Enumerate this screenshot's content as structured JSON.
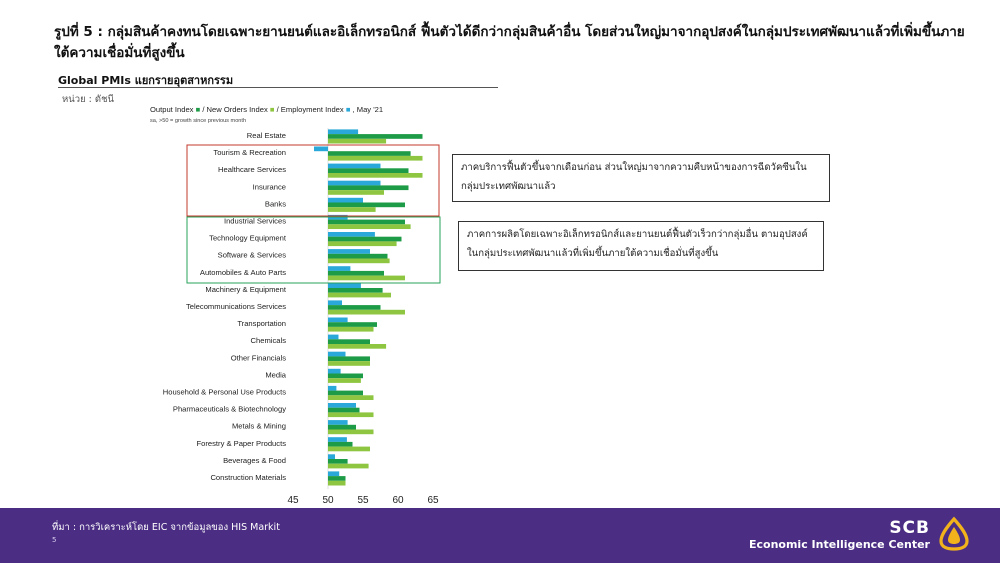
{
  "header": {
    "title": "รูปที่ 5 : กลุ่มสินค้าคงทนโดยเฉพาะยานยนต์และอิเล็กทรอนิกส์ ฟื้นตัวได้ดีกว่ากลุ่มสินค้าอื่น โดยส่วนใหญ่มาจากอุปสงค์ในกลุ่มประเทศพัฒนาแล้วที่เพิ่มขึ้นภายใต้ความเชื่อมั่นที่สูงขึ้น",
    "subtitle": "Global PMIs แยกรายอุตสาหกรรม",
    "unit": "หน่วย : ดัชนี"
  },
  "chart_data": {
    "type": "bar",
    "orientation": "horizontal",
    "legend_text": {
      "output": "Output Index",
      "sep1": " / New Orders Index ",
      "sep2": " / Employment Index ",
      "sep3": ", May '21",
      "note": "sa, >50 = growth since previous month"
    },
    "categories": [
      "Real Estate",
      "Tourism & Recreation",
      "Healthcare Services",
      "Insurance",
      "Banks",
      "Industrial Services",
      "Technology Equipment",
      "Software & Services",
      "Automobiles & Auto Parts",
      "Machinery & Equipment",
      "Telecommunications Services",
      "Transportation",
      "Chemicals",
      "Other Financials",
      "Media",
      "Household & Personal Use Products",
      "Pharmaceuticals & Biotechnology",
      "Metals & Mining",
      "Forestry & Paper Products",
      "Beverages & Food",
      "Construction Materials"
    ],
    "series": [
      {
        "name": "Employment Index",
        "color": "#29a8d9",
        "values": [
          54.3,
          48.0,
          57.5,
          57.5,
          55.0,
          52.8,
          56.7,
          56.0,
          53.2,
          54.7,
          52.0,
          52.8,
          51.5,
          52.5,
          51.8,
          51.2,
          54.0,
          52.8,
          52.7,
          51.0,
          51.6
        ]
      },
      {
        "name": "Output Index",
        "color": "#1e9b47",
        "values": [
          63.5,
          61.8,
          61.5,
          61.5,
          61.0,
          61.0,
          60.5,
          58.5,
          58.0,
          57.8,
          57.5,
          57.0,
          56.0,
          56.0,
          55.0,
          55.0,
          54.5,
          54.0,
          53.5,
          52.8,
          52.5
        ]
      },
      {
        "name": "New Orders Index",
        "color": "#8fc641",
        "values": [
          58.3,
          63.5,
          63.5,
          58.0,
          56.8,
          61.8,
          59.8,
          58.8,
          61.0,
          59.0,
          61.0,
          56.5,
          58.3,
          56.0,
          54.7,
          56.5,
          56.5,
          56.5,
          56.0,
          55.8,
          52.5
        ]
      }
    ],
    "xticks": [
      45,
      50,
      55,
      60,
      65
    ],
    "xlim": [
      45,
      65
    ]
  },
  "annotations": {
    "note1": "ภาคบริการฟื้นตัวขึ้นจากเดือนก่อน ส่วนใหญ่มาจากความคืบหน้าของการฉีดวัคซีนในกลุ่มประเทศพัฒนาแล้ว",
    "note2": "ภาคการผลิตโดยเฉพาะอิเล็กทรอนิกส์และยานยนต์ฟื้นตัวเร็วกว่ากลุ่มอื่น ตามอุปสงค์ในกลุ่มประเทศพัฒนาแล้วที่เพิ่มขึ้นภายใต้ความเชื่อมั่นที่สูงขึ้น"
  },
  "footer": {
    "source": "ที่มา : การวิเคราะห์โดย EIC จากข้อมูลของ HIS Markit",
    "page": "5",
    "brand_name": "SCB",
    "brand_tag": "Economic Intelligence Center"
  }
}
